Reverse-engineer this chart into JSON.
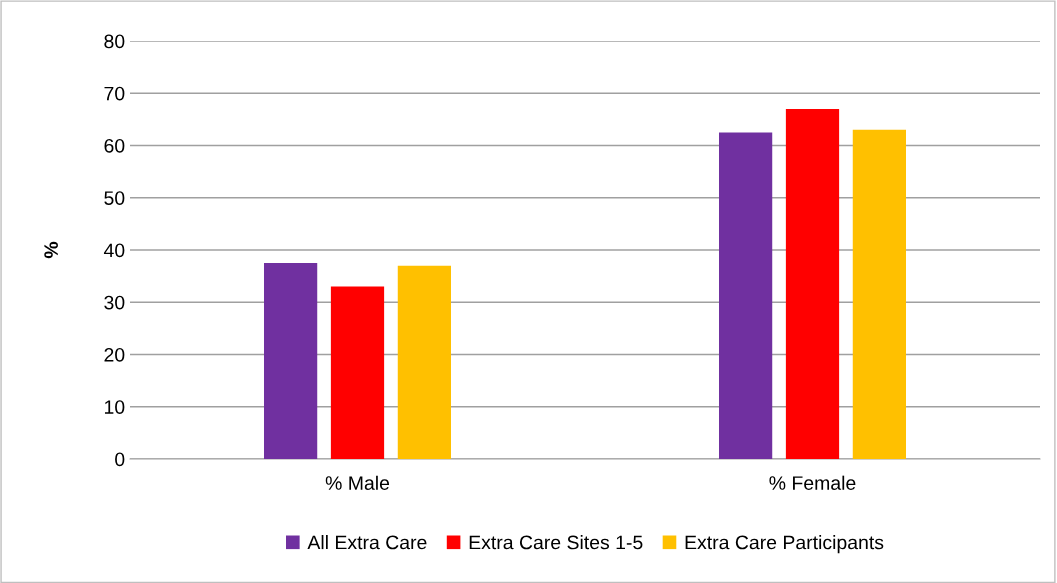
{
  "chart_data": {
    "type": "bar",
    "ylabel": "%",
    "categories": [
      "% Male",
      "% Female"
    ],
    "series": [
      {
        "name": "All Extra Care",
        "color": "#7030a0",
        "values": [
          37.5,
          62.5
        ]
      },
      {
        "name": "Extra Care Sites 1-5",
        "color": "#ff0000",
        "values": [
          33,
          67
        ]
      },
      {
        "name": "Extra Care Participants",
        "color": "#ffc000",
        "values": [
          37,
          63
        ]
      }
    ],
    "ylim": [
      0,
      80
    ],
    "yticks": [
      0,
      10,
      20,
      30,
      40,
      50,
      60,
      70,
      80
    ],
    "grid": "y",
    "legend": "bottom"
  }
}
